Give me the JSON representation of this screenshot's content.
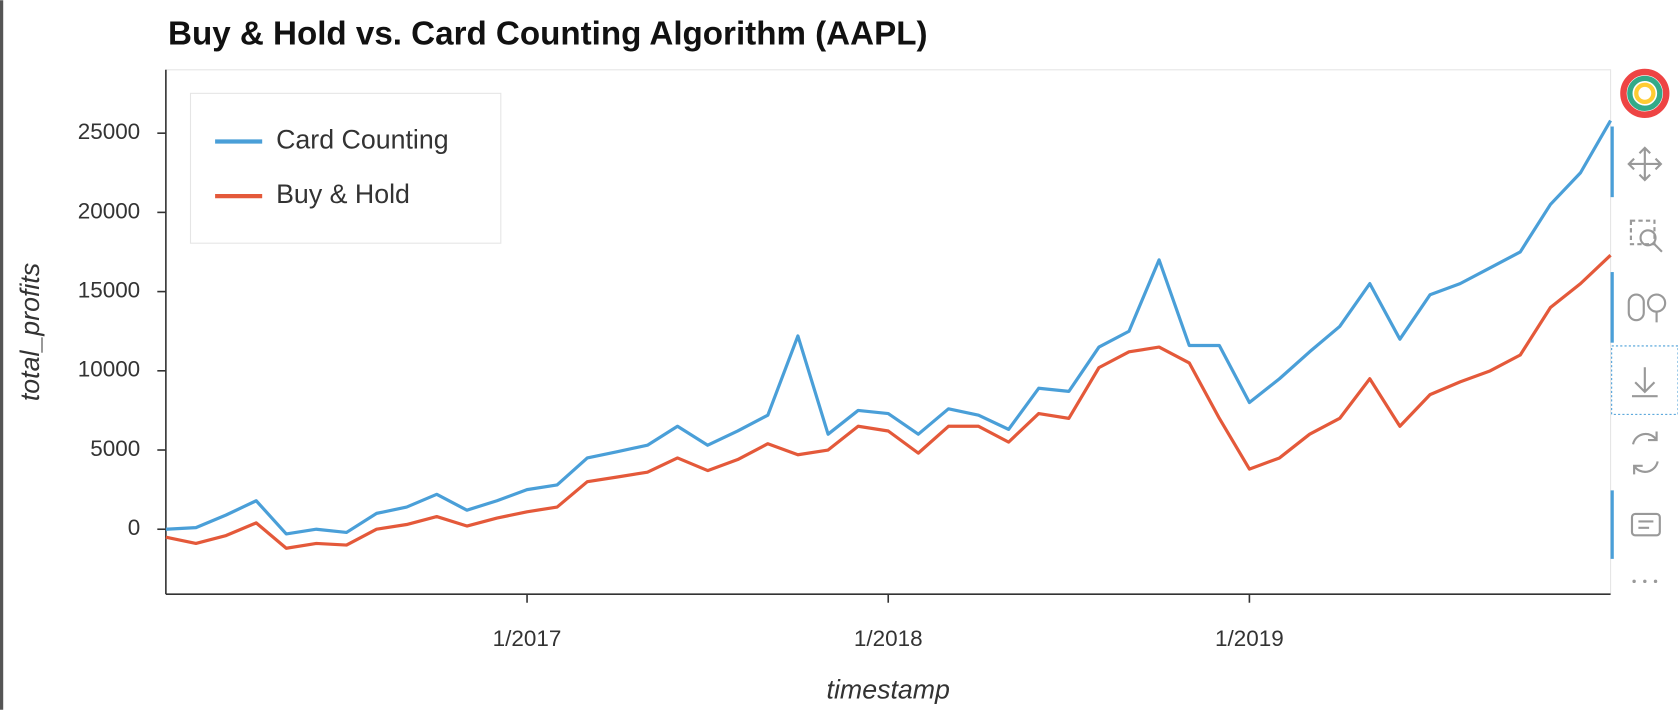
{
  "chart_data": {
    "type": "line",
    "title": "Buy & Hold vs. Card Counting Algorithm (AAPL)",
    "xlabel": "timestamp",
    "ylabel": "total_profits",
    "x": [
      "2016-01",
      "2016-02",
      "2016-03",
      "2016-04",
      "2016-05",
      "2016-06",
      "2016-07",
      "2016-08",
      "2016-09",
      "2016-10",
      "2016-11",
      "2016-12",
      "2017-01",
      "2017-02",
      "2017-03",
      "2017-04",
      "2017-05",
      "2017-06",
      "2017-07",
      "2017-08",
      "2017-09",
      "2017-10",
      "2017-11",
      "2017-12",
      "2018-01",
      "2018-02",
      "2018-03",
      "2018-04",
      "2018-05",
      "2018-06",
      "2018-07",
      "2018-08",
      "2018-09",
      "2018-10",
      "2018-11",
      "2018-12",
      "2019-01",
      "2019-02",
      "2019-03",
      "2019-04",
      "2019-05",
      "2019-06",
      "2019-07",
      "2019-08",
      "2019-09",
      "2019-10",
      "2019-11",
      "2019-12",
      "2020-01"
    ],
    "series": [
      {
        "name": "Card Counting",
        "color": "#4a9fd8",
        "values": [
          0,
          100,
          900,
          1800,
          -300,
          0,
          -200,
          1000,
          1400,
          2200,
          1200,
          1800,
          2500,
          2800,
          4500,
          4900,
          5300,
          6500,
          5300,
          6200,
          7200,
          12200,
          6000,
          7500,
          7300,
          6000,
          7600,
          7200,
          6300,
          8900,
          8700,
          11500,
          12500,
          17000,
          11600,
          11600,
          8000,
          9500,
          11200,
          12800,
          15500,
          12000,
          14800,
          15500,
          16500,
          17500,
          20500,
          22500,
          25800
        ]
      },
      {
        "name": "Buy & Hold",
        "color": "#e4593a",
        "values": [
          -500,
          -900,
          -400,
          400,
          -1200,
          -900,
          -1000,
          0,
          300,
          800,
          200,
          700,
          1100,
          1400,
          3000,
          3300,
          3600,
          4500,
          3700,
          4400,
          5400,
          4700,
          5000,
          6500,
          6200,
          4800,
          6500,
          6500,
          5500,
          7300,
          7000,
          10200,
          11200,
          11500,
          10500,
          7000,
          3800,
          4500,
          6000,
          7000,
          9500,
          6500,
          8500,
          9300,
          10000,
          11000,
          14000,
          15500,
          17300
        ]
      }
    ],
    "xlim": [
      "2016-01",
      "2020-01"
    ],
    "xticks": [
      {
        "value": "2017-01",
        "label": "1/2017"
      },
      {
        "value": "2018-01",
        "label": "1/2018"
      },
      {
        "value": "2019-01",
        "label": "1/2019"
      }
    ],
    "ylim": [
      -4100,
      29000
    ],
    "yticks": [
      0,
      5000,
      10000,
      15000,
      20000,
      25000
    ],
    "grid": false,
    "legend": "top_left"
  }
}
